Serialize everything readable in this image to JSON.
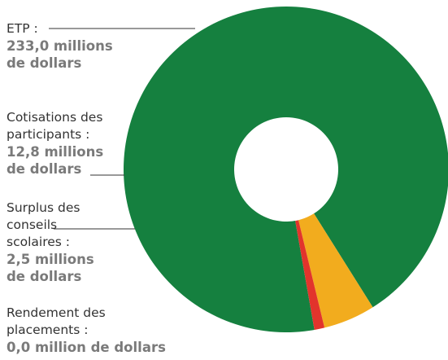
{
  "chart_data": {
    "type": "pie",
    "donut": true,
    "slices": [
      {
        "name": "ETP",
        "value": 233.0,
        "value_text": "233,0 millions",
        "unit_text": "de dollars",
        "color": "#15803f"
      },
      {
        "name": "Cotisations des participants",
        "value": 12.8,
        "value_text": "12,8 millions",
        "unit_text": "de dollars",
        "color": "#f2ac1e"
      },
      {
        "name": "Surplus des conseils scolaires",
        "value": 2.5,
        "value_text": "2,5 millions",
        "unit_text": "de dollars",
        "color": "#e2342c"
      },
      {
        "name": "Rendement des placements",
        "value": 0.0,
        "value_text": "0,0 million de dollars",
        "unit_text": "",
        "color": "#15803f"
      }
    ]
  },
  "labels": {
    "etp": {
      "lines": [
        "ETP :"
      ],
      "value_text": "233,0 millions",
      "unit_text": "de dollars"
    },
    "cotisations": {
      "lines": [
        "Cotisations des",
        "participants :"
      ],
      "value_text": "12,8 millions",
      "unit_text": "de dollars"
    },
    "surplus": {
      "lines": [
        "Surplus des",
        "conseils",
        "scolaires :"
      ],
      "value_text": "2,5 millions",
      "unit_text": "de dollars"
    },
    "rendement": {
      "lines": [
        "Rendement des",
        "placements :"
      ],
      "value_text": "0,0 million de dollars"
    }
  }
}
